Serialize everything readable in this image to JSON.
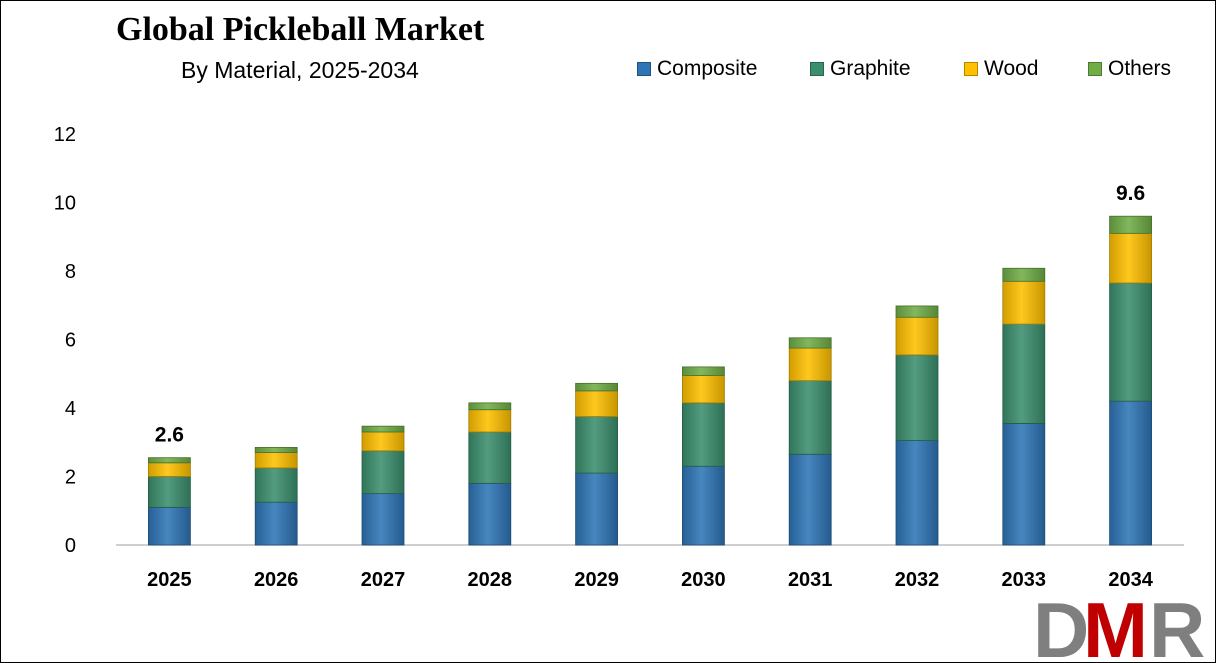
{
  "chart_data": {
    "type": "bar",
    "stacked": true,
    "title": "Global Pickleball Market",
    "subtitle": "By Material, 2025-2034",
    "categories": [
      "2025",
      "2026",
      "2027",
      "2028",
      "2029",
      "2030",
      "2031",
      "2032",
      "2033",
      "2034"
    ],
    "series": [
      {
        "name": "Composite",
        "color": "#2e75b6",
        "values": [
          1.1,
          1.25,
          1.5,
          1.8,
          2.1,
          2.3,
          2.65,
          3.05,
          3.55,
          4.2
        ]
      },
      {
        "name": "Graphite",
        "color": "#3b8f6e",
        "values": [
          0.9,
          1.0,
          1.25,
          1.5,
          1.65,
          1.85,
          2.15,
          2.5,
          2.9,
          3.45
        ]
      },
      {
        "name": "Wood",
        "color": "#ffc000",
        "values": [
          0.4,
          0.45,
          0.55,
          0.65,
          0.75,
          0.8,
          0.95,
          1.1,
          1.25,
          1.45
        ]
      },
      {
        "name": "Others",
        "color": "#70ad47",
        "values": [
          0.15,
          0.15,
          0.17,
          0.2,
          0.22,
          0.25,
          0.3,
          0.33,
          0.38,
          0.5
        ]
      }
    ],
    "ylim": [
      0,
      12
    ],
    "yticks": [
      0,
      2,
      4,
      6,
      8,
      10,
      12
    ],
    "grid": false,
    "legend": "top-right",
    "annotations": [
      {
        "category": "2025",
        "text": "2.6"
      },
      {
        "category": "2034",
        "text": "9.6"
      }
    ]
  },
  "logo": {
    "text": "DMR",
    "letters": [
      "D",
      "M",
      "R"
    ],
    "colors": [
      "#7f7f7f",
      "#c00000",
      "#7f7f7f"
    ]
  }
}
